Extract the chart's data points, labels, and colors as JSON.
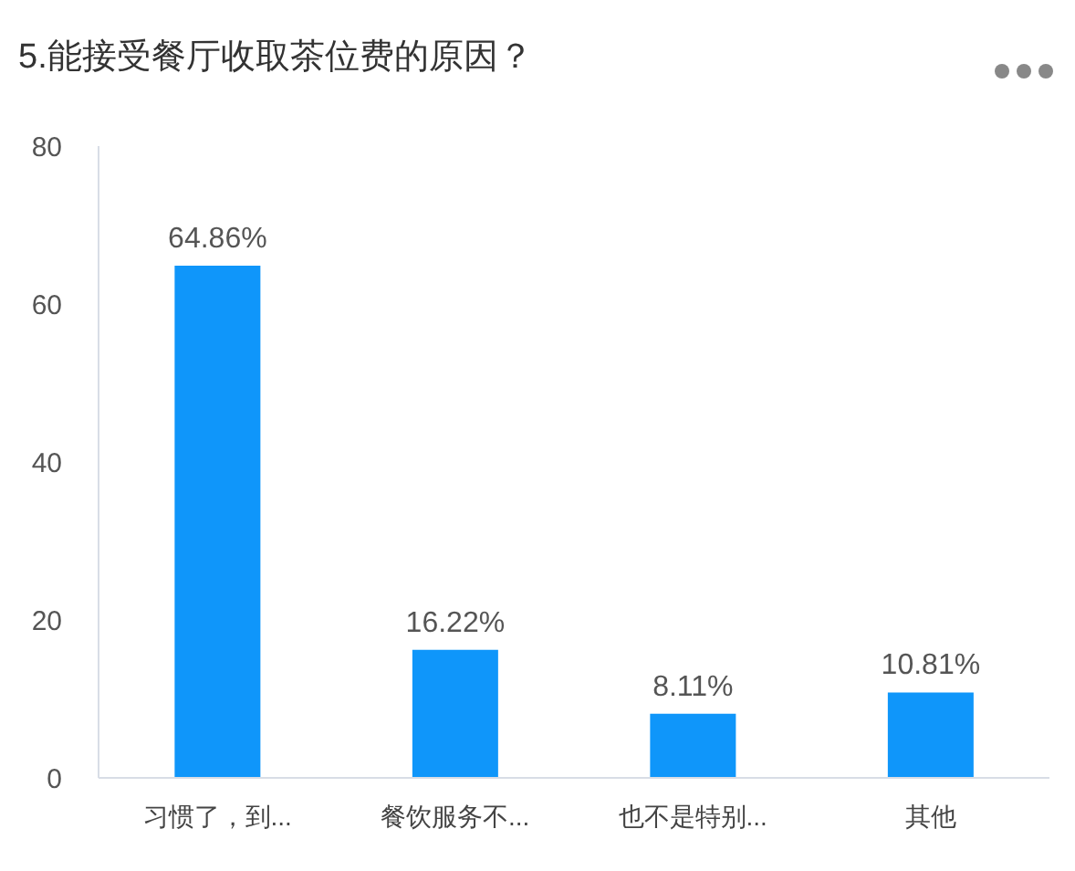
{
  "chart_data": {
    "type": "bar",
    "title": "5.能接受餐厅收取茶位费的原因？",
    "categories": [
      "习惯了，到...",
      "餐饮服务不...",
      "也不是特别...",
      "其他"
    ],
    "values": [
      64.86,
      16.22,
      8.11,
      10.81
    ],
    "value_labels": [
      "64.86%",
      "16.22%",
      "8.11%",
      "10.81%"
    ],
    "color": "#0f96fa",
    "ylim": [
      0,
      80
    ],
    "yticks": [
      0,
      20,
      40,
      60,
      80
    ],
    "grid": false
  }
}
